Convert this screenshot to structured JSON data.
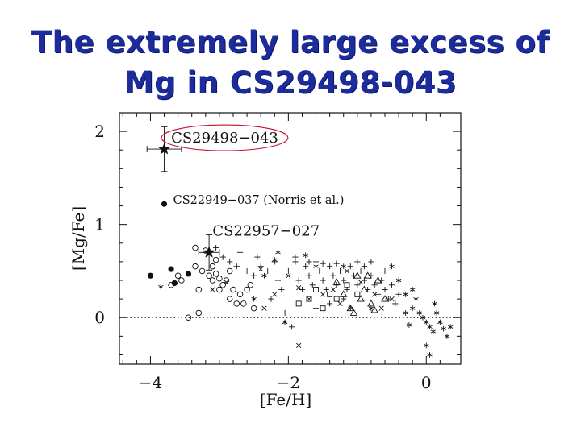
{
  "slide": {
    "title_line1": "The extremely large excess of",
    "title_line2": "Mg in CS29498-043"
  },
  "colors": {
    "title": "#1c2c9c",
    "highlight": "#c8102e",
    "ink": "#111111"
  },
  "chart_data": {
    "type": "scatter",
    "title": "",
    "xlabel": "[Fe/H]",
    "ylabel": "[Mg/Fe]",
    "xlim": [
      -4.45,
      0.5
    ],
    "ylim": [
      -0.5,
      2.2
    ],
    "xticks": [
      -4,
      -2,
      0
    ],
    "xtick_labels": [
      "−4",
      "−2",
      "0"
    ],
    "yticks": [
      0,
      1,
      2
    ],
    "ytick_labels": [
      "0",
      "1",
      "2"
    ],
    "zero_line": true,
    "grid": false,
    "annotations": [
      {
        "text": "CS29498−043",
        "x": -3.7,
        "y": 1.88,
        "circled": true
      },
      {
        "text": "CS22949−037 (Norris et al.)",
        "x": -3.67,
        "y": 1.22,
        "circled": false
      },
      {
        "text": "CS22957−027",
        "x": -3.1,
        "y": 0.88,
        "circled": false
      }
    ],
    "stars": [
      {
        "x": -3.8,
        "y": 1.81,
        "xerr": 0.25,
        "yerr": 0.24
      },
      {
        "x": -3.15,
        "y": 0.7,
        "xerr": 0.15,
        "yerr": 0.19
      }
    ],
    "filled_circles": [
      [
        -3.8,
        1.22
      ],
      [
        -4.0,
        0.45
      ],
      [
        -3.7,
        0.52
      ],
      [
        -3.65,
        0.37
      ],
      [
        -3.45,
        0.47
      ]
    ],
    "open_circles": [
      [
        -3.35,
        0.75
      ],
      [
        -3.2,
        0.72
      ],
      [
        -3.1,
        0.55
      ],
      [
        -3.25,
        0.5
      ],
      [
        -3.05,
        0.47
      ],
      [
        -3.0,
        0.42
      ],
      [
        -3.15,
        0.45
      ],
      [
        -3.3,
        0.3
      ],
      [
        -3.55,
        0.4
      ],
      [
        -3.6,
        0.45
      ],
      [
        -2.95,
        0.35
      ],
      [
        -2.85,
        0.2
      ],
      [
        -2.75,
        0.15
      ],
      [
        -2.8,
        0.3
      ],
      [
        -2.7,
        0.25
      ],
      [
        -2.65,
        0.15
      ],
      [
        -2.55,
        0.35
      ],
      [
        -2.5,
        0.1
      ],
      [
        -3.3,
        0.05
      ],
      [
        -3.45,
        0.0
      ],
      [
        -3.0,
        0.3
      ],
      [
        -2.9,
        0.4
      ],
      [
        -3.1,
        0.4
      ],
      [
        -2.6,
        0.3
      ],
      [
        -2.85,
        0.5
      ],
      [
        -3.35,
        0.55
      ],
      [
        -3.7,
        0.35
      ],
      [
        -3.05,
        0.62
      ]
    ],
    "pluses": [
      [
        -3.05,
        0.75
      ],
      [
        -2.95,
        0.65
      ],
      [
        -2.85,
        0.6
      ],
      [
        -2.75,
        0.55
      ],
      [
        -2.7,
        0.7
      ],
      [
        -2.6,
        0.5
      ],
      [
        -2.5,
        0.45
      ],
      [
        -2.4,
        0.55
      ],
      [
        -2.3,
        0.5
      ],
      [
        -2.2,
        0.6
      ],
      [
        -2.15,
        0.4
      ],
      [
        -2.1,
        0.3
      ],
      [
        -2.0,
        0.5
      ],
      [
        -1.9,
        0.6
      ],
      [
        -1.85,
        0.4
      ],
      [
        -1.8,
        0.3
      ],
      [
        -1.75,
        0.55
      ],
      [
        -1.7,
        0.45
      ],
      [
        -1.65,
        0.35
      ],
      [
        -1.6,
        0.6
      ],
      [
        -1.55,
        0.5
      ],
      [
        -1.5,
        0.4
      ],
      [
        -1.45,
        0.3
      ],
      [
        -1.4,
        0.55
      ],
      [
        -1.35,
        0.45
      ],
      [
        -1.3,
        0.35
      ],
      [
        -1.25,
        0.5
      ],
      [
        -1.2,
        0.4
      ],
      [
        -1.15,
        0.3
      ],
      [
        -1.1,
        0.55
      ],
      [
        -1.05,
        0.45
      ],
      [
        -1.0,
        0.35
      ],
      [
        -0.95,
        0.5
      ],
      [
        -0.9,
        0.4
      ],
      [
        -0.85,
        0.3
      ],
      [
        -0.8,
        0.45
      ],
      [
        -0.75,
        0.35
      ],
      [
        -0.7,
        0.25
      ],
      [
        -0.65,
        0.4
      ],
      [
        -0.6,
        0.3
      ],
      [
        -0.55,
        0.2
      ],
      [
        -0.5,
        0.35
      ],
      [
        -0.45,
        0.15
      ],
      [
        -0.4,
        0.25
      ],
      [
        -1.9,
        0.65
      ],
      [
        -1.7,
        0.6
      ],
      [
        -1.5,
        0.58
      ],
      [
        -2.05,
        0.05
      ],
      [
        -1.95,
        -0.1
      ],
      [
        -1.6,
        0.1
      ],
      [
        -1.2,
        0.2
      ],
      [
        -0.9,
        0.55
      ],
      [
        -0.8,
        0.6
      ],
      [
        -0.7,
        0.5
      ],
      [
        -2.45,
        0.65
      ],
      [
        -2.25,
        0.2
      ],
      [
        -1.4,
        0.15
      ],
      [
        -1.0,
        0.6
      ],
      [
        -1.3,
        0.58
      ],
      [
        -0.6,
        0.5
      ]
    ],
    "asterisks": [
      [
        -3.85,
        0.33
      ],
      [
        -2.2,
        0.62
      ],
      [
        -2.15,
        0.7
      ],
      [
        -2.35,
        0.45
      ],
      [
        -1.75,
        0.67
      ],
      [
        -1.6,
        0.55
      ],
      [
        -1.2,
        0.55
      ],
      [
        -0.5,
        0.55
      ],
      [
        -0.4,
        0.4
      ],
      [
        -0.3,
        0.25
      ],
      [
        -0.2,
        0.3
      ],
      [
        -0.15,
        0.2
      ],
      [
        -0.1,
        0.05
      ],
      [
        -0.05,
        0.0
      ],
      [
        0.0,
        -0.05
      ],
      [
        0.05,
        -0.1
      ],
      [
        0.1,
        -0.15
      ],
      [
        0.15,
        0.05
      ],
      [
        0.2,
        -0.05
      ],
      [
        0.25,
        -0.12
      ],
      [
        0.3,
        -0.2
      ],
      [
        0.35,
        -0.1
      ],
      [
        0.0,
        -0.3
      ],
      [
        0.05,
        -0.4
      ],
      [
        -0.2,
        0.1
      ],
      [
        -0.3,
        0.05
      ],
      [
        -2.05,
        -0.05
      ],
      [
        -2.5,
        0.2
      ],
      [
        -1.1,
        0.1
      ],
      [
        -0.8,
        0.1
      ],
      [
        0.12,
        0.15
      ],
      [
        -0.25,
        -0.08
      ]
    ],
    "crosses": [
      [
        -3.1,
        0.3
      ],
      [
        -2.9,
        0.38
      ],
      [
        -2.4,
        0.52
      ],
      [
        -2.2,
        0.25
      ],
      [
        -2.0,
        0.45
      ],
      [
        -1.85,
        0.32
      ],
      [
        -1.7,
        0.2
      ],
      [
        -1.5,
        0.25
      ],
      [
        -1.35,
        0.3
      ],
      [
        -1.15,
        0.5
      ],
      [
        -0.95,
        0.38
      ],
      [
        -0.75,
        0.25
      ],
      [
        -0.5,
        0.2
      ],
      [
        -1.85,
        -0.3
      ],
      [
        -2.35,
        0.1
      ],
      [
        -1.25,
        0.15
      ],
      [
        -0.65,
        0.1
      ]
    ],
    "triangles": [
      [
        -1.2,
        0.25
      ],
      [
        -1.0,
        0.45
      ],
      [
        -0.9,
        0.3
      ],
      [
        -0.85,
        0.45
      ],
      [
        -0.95,
        0.2
      ],
      [
        -1.1,
        0.1
      ],
      [
        -0.7,
        0.4
      ],
      [
        -0.8,
        0.15
      ],
      [
        -1.3,
        0.38
      ],
      [
        -1.05,
        0.05
      ],
      [
        -0.6,
        0.2
      ],
      [
        -0.75,
        0.08
      ]
    ],
    "squares": [
      [
        -1.7,
        0.2
      ],
      [
        -1.6,
        0.3
      ],
      [
        -1.3,
        0.2
      ],
      [
        -1.15,
        0.35
      ],
      [
        -1.5,
        0.1
      ],
      [
        -1.4,
        0.25
      ],
      [
        -1.0,
        0.25
      ],
      [
        -1.85,
        0.15
      ]
    ]
  }
}
